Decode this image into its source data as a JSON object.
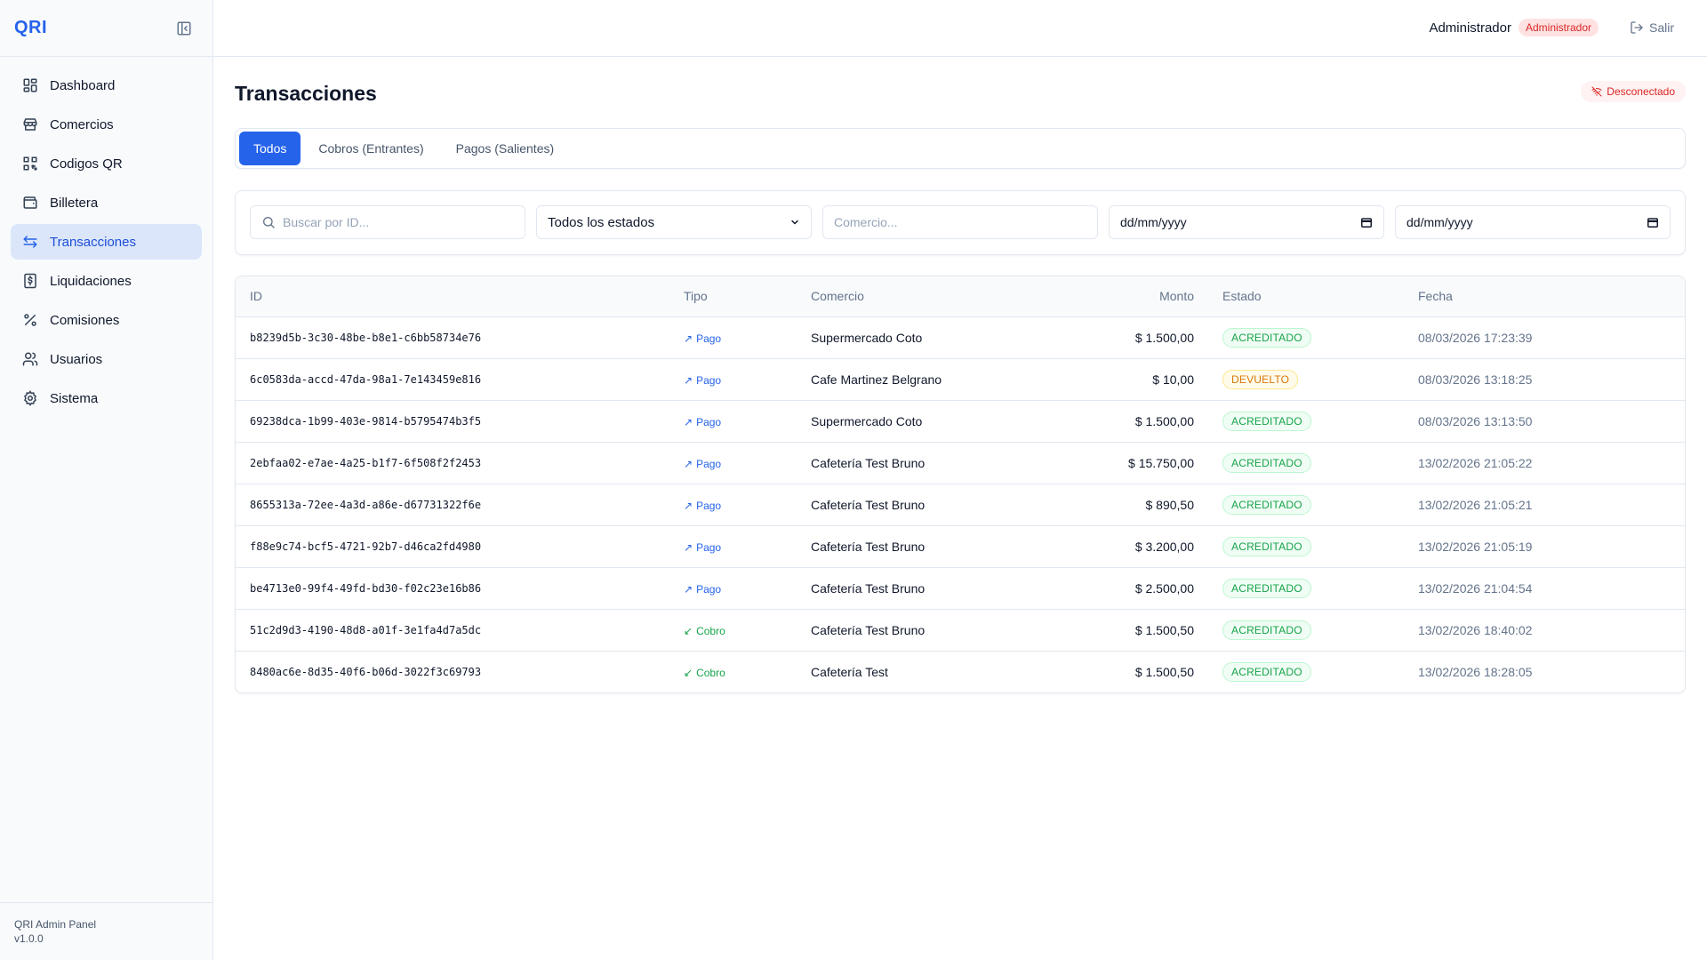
{
  "app": {
    "logo": "QRI"
  },
  "sidebar": {
    "items": [
      {
        "label": "Dashboard",
        "icon": "dashboard-icon"
      },
      {
        "label": "Comercios",
        "icon": "store-icon"
      },
      {
        "label": "Codigos QR",
        "icon": "qr-code-icon"
      },
      {
        "label": "Billetera",
        "icon": "wallet-icon"
      },
      {
        "label": "Transacciones",
        "icon": "arrows-exchange-icon",
        "active": true
      },
      {
        "label": "Liquidaciones",
        "icon": "dollar-receipt-icon"
      },
      {
        "label": "Comisiones",
        "icon": "percent-icon"
      },
      {
        "label": "Usuarios",
        "icon": "users-icon"
      },
      {
        "label": "Sistema",
        "icon": "gear-icon"
      }
    ],
    "footer": {
      "name": "QRI Admin Panel",
      "version": "v1.0.0"
    }
  },
  "header": {
    "user_name": "Administrador",
    "role_badge": "Administrador",
    "logout_label": "Salir"
  },
  "page": {
    "title": "Transacciones",
    "connection_status": "Desconectado"
  },
  "tabs": [
    {
      "label": "Todos",
      "active": true
    },
    {
      "label": "Cobros (Entrantes)"
    },
    {
      "label": "Pagos (Salientes)"
    }
  ],
  "filters": {
    "search_placeholder": "Buscar por ID...",
    "status_selected": "Todos los estados",
    "merchant_placeholder": "Comercio...",
    "date_from_placeholder": "dd/mm/yyyy",
    "date_to_placeholder": "dd/mm/yyyy"
  },
  "table": {
    "headers": {
      "id": "ID",
      "tipo": "Tipo",
      "comercio": "Comercio",
      "monto": "Monto",
      "estado": "Estado",
      "fecha": "Fecha"
    },
    "rows": [
      {
        "id": "b8239d5b-3c30-48be-b8e1-c6bb58734e76",
        "tipo": "Pago",
        "comercio": "Supermercado Coto",
        "monto": "$ 1.500,00",
        "estado": "ACREDITADO",
        "fecha": "08/03/2026 17:23:39"
      },
      {
        "id": "6c0583da-accd-47da-98a1-7e143459e816",
        "tipo": "Pago",
        "comercio": "Cafe Martinez Belgrano",
        "monto": "$ 10,00",
        "estado": "DEVUELTO",
        "fecha": "08/03/2026 13:18:25"
      },
      {
        "id": "69238dca-1b99-403e-9814-b5795474b3f5",
        "tipo": "Pago",
        "comercio": "Supermercado Coto",
        "monto": "$ 1.500,00",
        "estado": "ACREDITADO",
        "fecha": "08/03/2026 13:13:50"
      },
      {
        "id": "2ebfaa02-e7ae-4a25-b1f7-6f508f2f2453",
        "tipo": "Pago",
        "comercio": "Cafetería Test Bruno",
        "monto": "$ 15.750,00",
        "estado": "ACREDITADO",
        "fecha": "13/02/2026 21:05:22"
      },
      {
        "id": "8655313a-72ee-4a3d-a86e-d67731322f6e",
        "tipo": "Pago",
        "comercio": "Cafetería Test Bruno",
        "monto": "$ 890,50",
        "estado": "ACREDITADO",
        "fecha": "13/02/2026 21:05:21"
      },
      {
        "id": "f88e9c74-bcf5-4721-92b7-d46ca2fd4980",
        "tipo": "Pago",
        "comercio": "Cafetería Test Bruno",
        "monto": "$ 3.200,00",
        "estado": "ACREDITADO",
        "fecha": "13/02/2026 21:05:19"
      },
      {
        "id": "be4713e0-99f4-49fd-bd30-f02c23e16b86",
        "tipo": "Pago",
        "comercio": "Cafetería Test Bruno",
        "monto": "$ 2.500,00",
        "estado": "ACREDITADO",
        "fecha": "13/02/2026 21:04:54"
      },
      {
        "id": "51c2d9d3-4190-48d8-a01f-3e1fa4d7a5dc",
        "tipo": "Cobro",
        "comercio": "Cafetería Test Bruno",
        "monto": "$ 1.500,50",
        "estado": "ACREDITADO",
        "fecha": "13/02/2026 18:40:02"
      },
      {
        "id": "8480ac6e-8d35-40f6-b06d-3022f3c69793",
        "tipo": "Cobro",
        "comercio": "Cafetería Test",
        "monto": "$ 1.500,50",
        "estado": "ACREDITADO",
        "fecha": "13/02/2026 18:28:05"
      }
    ]
  },
  "colors": {
    "accent": "#2563eb",
    "success": "#16a34a",
    "warning": "#d97706",
    "danger": "#dc2626"
  }
}
